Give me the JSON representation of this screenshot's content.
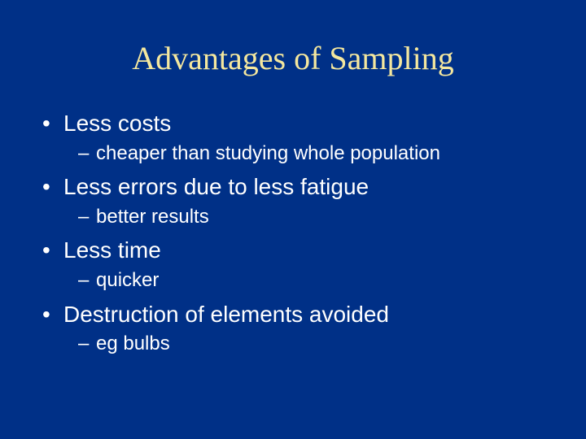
{
  "slide": {
    "background_color": "#003087",
    "text_color": "#ffffff",
    "title_color": "#f4e79e",
    "title_font": "Times New Roman",
    "body_font": "Arial",
    "title_fontsize": 40,
    "bullet_fontsize": 28,
    "subbullet_fontsize": 24,
    "title": "Advantages of Sampling",
    "bullets": [
      {
        "text": "Less costs",
        "sub": [
          "cheaper than studying whole population"
        ]
      },
      {
        "text": "Less errors due to less fatigue",
        "sub": [
          "better results"
        ]
      },
      {
        "text": "Less time",
        "sub": [
          "quicker"
        ]
      },
      {
        "text": "Destruction of elements avoided",
        "sub": [
          "eg bulbs"
        ]
      }
    ]
  }
}
